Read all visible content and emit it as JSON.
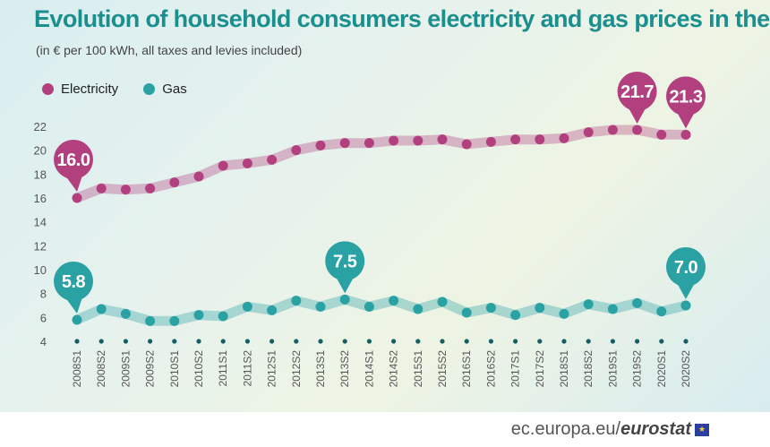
{
  "chart_data": {
    "type": "line",
    "title": "Evolution of household consumers electricity and gas prices in the EU",
    "subtitle": "(in € per 100 kWh, all taxes and levies included)",
    "categories": [
      "2008S1",
      "2008S2",
      "2009S1",
      "2009S2",
      "2010S1",
      "2010S2",
      "2011S1",
      "2011S2",
      "2012S1",
      "2012S2",
      "2013S1",
      "2013S2",
      "2014S1",
      "2014S2",
      "2015S1",
      "2015S2",
      "2016S1",
      "2016S2",
      "2017S1",
      "2017S2",
      "2018S1",
      "2018S2",
      "2019S1",
      "2019S2",
      "2020S1",
      "2020S2"
    ],
    "series": [
      {
        "name": "Electricity",
        "color": "#b2407f",
        "values": [
          16.0,
          16.8,
          16.7,
          16.8,
          17.3,
          17.8,
          18.7,
          18.9,
          19.2,
          20.0,
          20.4,
          20.6,
          20.6,
          20.8,
          20.8,
          20.9,
          20.5,
          20.7,
          20.9,
          20.9,
          21.0,
          21.5,
          21.7,
          21.7,
          21.3,
          21.3
        ]
      },
      {
        "name": "Gas",
        "color": "#2aa1a3",
        "values": [
          5.8,
          6.7,
          6.3,
          5.7,
          5.7,
          6.2,
          6.1,
          6.9,
          6.6,
          7.4,
          6.9,
          7.5,
          6.9,
          7.4,
          6.7,
          7.3,
          6.4,
          6.8,
          6.2,
          6.8,
          6.3,
          7.1,
          6.7,
          7.2,
          6.5,
          7.0
        ]
      }
    ],
    "callouts": [
      {
        "series": 0,
        "index": 0,
        "label": "16.0",
        "direction": "left"
      },
      {
        "series": 0,
        "index": 23,
        "label": "21.7",
        "direction": "up"
      },
      {
        "series": 0,
        "index": 25,
        "label": "21.3",
        "direction": "up"
      },
      {
        "series": 1,
        "index": 0,
        "label": "5.8",
        "direction": "left"
      },
      {
        "series": 1,
        "index": 11,
        "label": "7.5",
        "direction": "up"
      },
      {
        "series": 1,
        "index": 25,
        "label": "7.0",
        "direction": "up"
      }
    ],
    "yticks": [
      4,
      6,
      8,
      10,
      12,
      14,
      16,
      18,
      20,
      22
    ],
    "ylim": [
      4,
      22
    ],
    "grid": false,
    "legend": "top-left"
  },
  "source": {
    "domain_text": "ec.europa.eu/",
    "brand": "eurostat"
  },
  "colors": {
    "title": "#1b8e8e",
    "electricity": "#b2407f",
    "gas": "#2aa1a3",
    "axis_dot": "#155f63"
  }
}
